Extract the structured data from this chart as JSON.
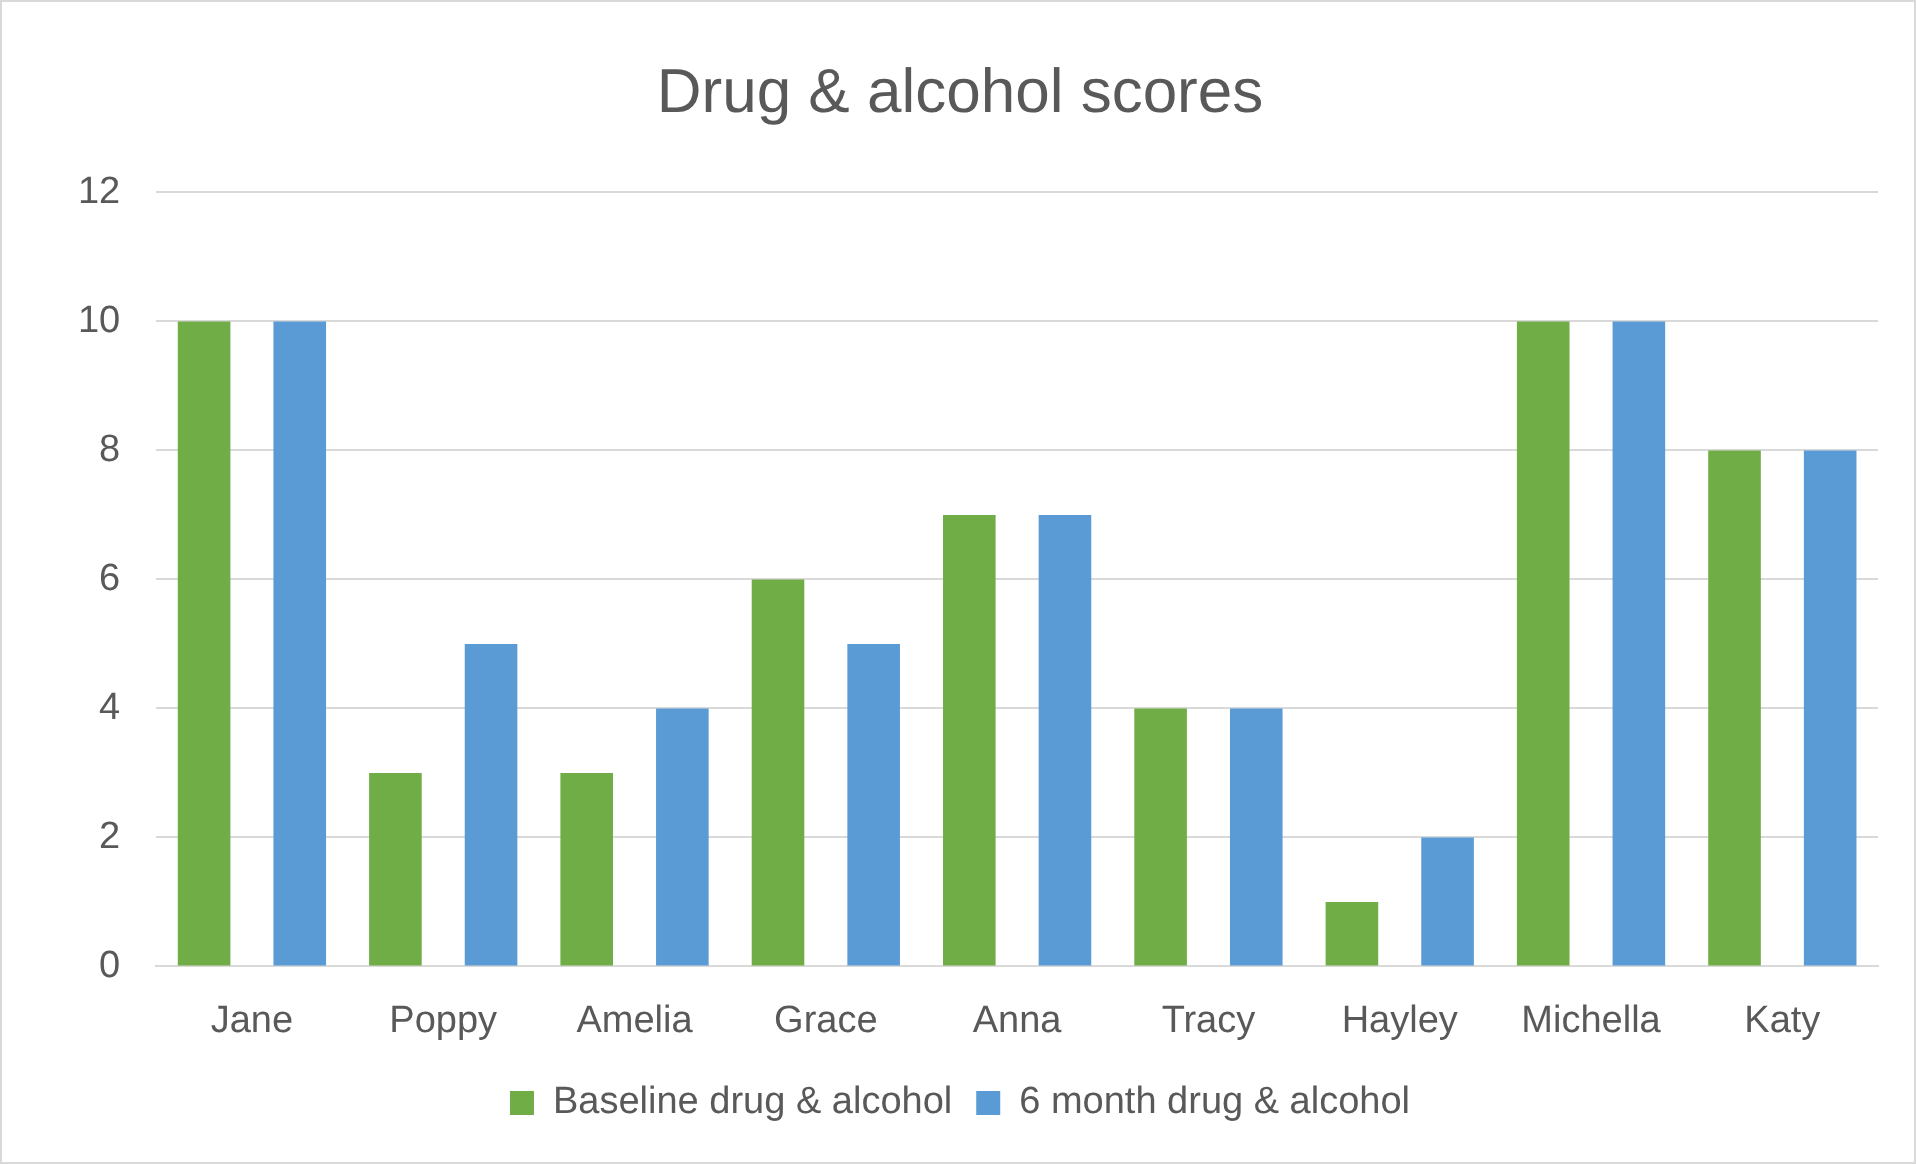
{
  "chart_data": {
    "type": "bar",
    "title": "Drug & alcohol scores",
    "categories": [
      "Jane",
      "Poppy",
      "Amelia",
      "Grace",
      "Anna",
      "Tracy",
      "Hayley",
      "Michella",
      "Katy"
    ],
    "series": [
      {
        "name": "Baseline drug & alcohol",
        "color": "#70ad47",
        "values": [
          10,
          3,
          3,
          6,
          7,
          4,
          1,
          10,
          8
        ]
      },
      {
        "name": "6 month drug & alcohol",
        "color": "#5b9bd5",
        "values": [
          10,
          5,
          4,
          5,
          7,
          4,
          2,
          10,
          8
        ]
      }
    ],
    "ylim": [
      0,
      12
    ],
    "yticks": [
      0,
      2,
      4,
      6,
      8,
      10,
      12
    ],
    "grid": "y",
    "legend": "bottom"
  }
}
